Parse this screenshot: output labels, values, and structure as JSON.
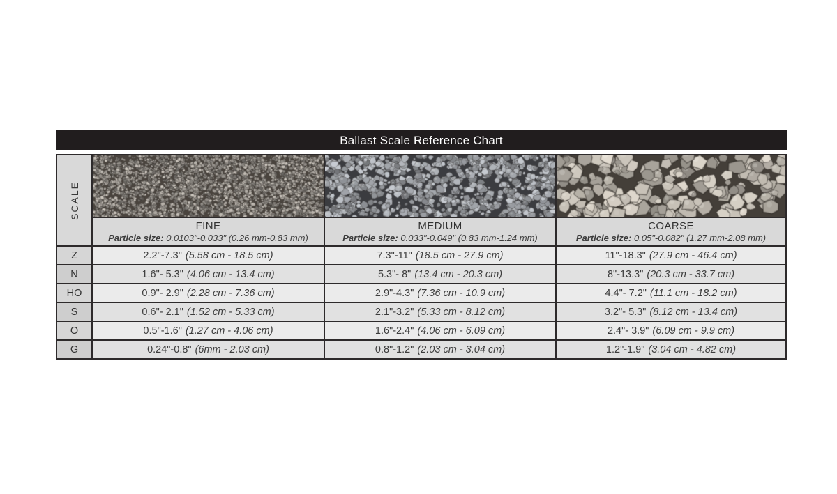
{
  "chart_data": {
    "type": "table",
    "title": "Ballast Scale Reference Chart",
    "row_axis_label": "SCALE",
    "columns": [
      {
        "label": "FINE",
        "particle_size_label": "Particle size:",
        "particle_size": "0.0103\"-0.033\" (0.26 mm-0.83 mm)",
        "texture": "fine-ballast-photo"
      },
      {
        "label": "MEDIUM",
        "particle_size_label": "Particle size:",
        "particle_size": "0.033\"-0.049\" (0.83 mm-1.24 mm)",
        "texture": "medium-ballast-photo"
      },
      {
        "label": "COARSE",
        "particle_size_label": "Particle size:",
        "particle_size": "0.05\"-0.082\" (1.27 mm-2.08 mm)",
        "texture": "coarse-ballast-photo"
      }
    ],
    "rows": [
      {
        "scale": "Z",
        "cells": [
          {
            "in": "2.2\"-7.3\"",
            "cm": "(5.58 cm - 18.5 cm)"
          },
          {
            "in": "7.3\"-11\"",
            "cm": "(18.5 cm - 27.9 cm)"
          },
          {
            "in": "11\"-18.3\"",
            "cm": "(27.9 cm - 46.4 cm)"
          }
        ]
      },
      {
        "scale": "N",
        "cells": [
          {
            "in": "1.6\"- 5.3\"",
            "cm": "(4.06 cm - 13.4 cm)"
          },
          {
            "in": "5.3\"- 8\"",
            "cm": "(13.4 cm - 20.3 cm)"
          },
          {
            "in": "8\"-13.3\"",
            "cm": "(20.3 cm - 33.7 cm)"
          }
        ]
      },
      {
        "scale": "HO",
        "cells": [
          {
            "in": "0.9\"- 2.9\"",
            "cm": "(2.28 cm - 7.36 cm)"
          },
          {
            "in": "2.9\"-4.3\"",
            "cm": "(7.36 cm - 10.9 cm)"
          },
          {
            "in": "4.4\"- 7.2\"",
            "cm": "(11.1 cm - 18.2 cm)"
          }
        ]
      },
      {
        "scale": "S",
        "cells": [
          {
            "in": "0.6\"- 2.1\"",
            "cm": "(1.52 cm - 5.33 cm)"
          },
          {
            "in": "2.1\"-3.2\"",
            "cm": "(5.33 cm - 8.12 cm)"
          },
          {
            "in": "3.2\"- 5.3\"",
            "cm": "(8.12 cm - 13.4 cm)"
          }
        ]
      },
      {
        "scale": "O",
        "cells": [
          {
            "in": "0.5\"-1.6\"",
            "cm": "(1.27 cm - 4.06 cm)"
          },
          {
            "in": "1.6\"-2.4\"",
            "cm": "(4.06 cm - 6.09 cm)"
          },
          {
            "in": "2.4\"- 3.9\"",
            "cm": "(6.09 cm - 9.9 cm)"
          }
        ]
      },
      {
        "scale": "G",
        "cells": [
          {
            "in": "0.24\"-0.8\"",
            "cm": "(6mm - 2.03 cm)"
          },
          {
            "in": "0.8\"-1.2\"",
            "cm": "(2.03 cm - 3.04 cm)"
          },
          {
            "in": "1.2\"-1.9\"",
            "cm": "(3.04 cm - 4.82 cm)"
          }
        ]
      }
    ]
  },
  "colors": {
    "title_bar_bg": "#211d1e",
    "title_text": "#ffffff",
    "grid_line": "#2d2a2b",
    "header_cell_bg": "#d9d9d9",
    "row_bg_light": "#ebebeb",
    "row_bg_dark": "#e1e1e1"
  }
}
